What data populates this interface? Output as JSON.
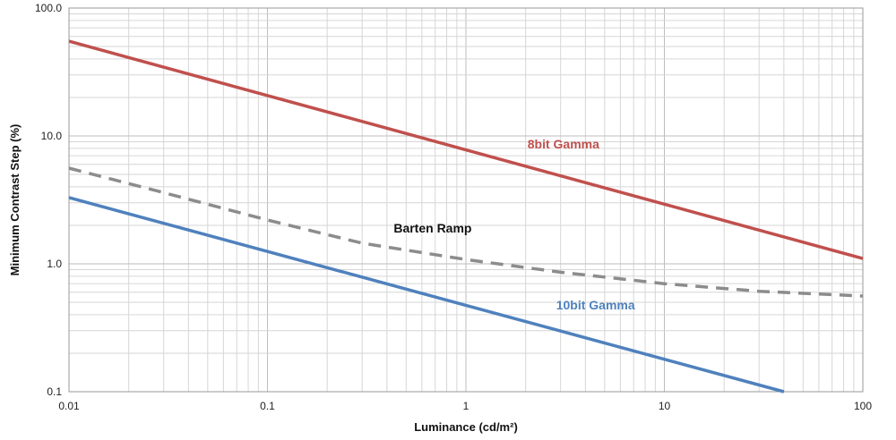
{
  "chart_data": {
    "type": "line",
    "xscale": "log",
    "yscale": "log",
    "xlim": [
      0.01,
      100
    ],
    "ylim": [
      0.1,
      100
    ],
    "grid": true,
    "xlabel": "Luminance (cd/m²)",
    "ylabel": "Minimum Contrast Step (%)",
    "x_ticks": [
      "0.01",
      "0.1",
      "1",
      "10",
      "100"
    ],
    "y_ticks": [
      "0.1",
      "1.0",
      "10.0",
      "100.0"
    ],
    "series": [
      {
        "name": "8bit Gamma",
        "color": "#c0504d",
        "style": "solid",
        "points": [
          [
            0.01,
            55
          ],
          [
            100,
            1.1
          ]
        ]
      },
      {
        "name": "Barten Ramp",
        "color": "#8c8c8c",
        "style": "dashed",
        "points": [
          [
            0.01,
            5.6
          ],
          [
            0.03,
            3.6
          ],
          [
            0.1,
            2.2
          ],
          [
            0.3,
            1.45
          ],
          [
            1,
            1.08
          ],
          [
            3,
            0.86
          ],
          [
            10,
            0.7
          ],
          [
            30,
            0.61
          ],
          [
            100,
            0.56
          ]
        ]
      },
      {
        "name": "10bit Gamma",
        "color": "#4f81bd",
        "style": "solid",
        "points": [
          [
            0.01,
            3.3
          ],
          [
            40,
            0.1
          ]
        ]
      }
    ],
    "annotations": [
      {
        "text": "8bit Gamma",
        "x": 3.1,
        "y": 8.0,
        "color": "#c0504d"
      },
      {
        "text": "Barten Ramp",
        "x": 0.68,
        "y": 1.75,
        "color": "#111111"
      },
      {
        "text": "10bit Gamma",
        "x": 4.5,
        "y": 0.44,
        "color": "#4f81bd"
      }
    ]
  }
}
